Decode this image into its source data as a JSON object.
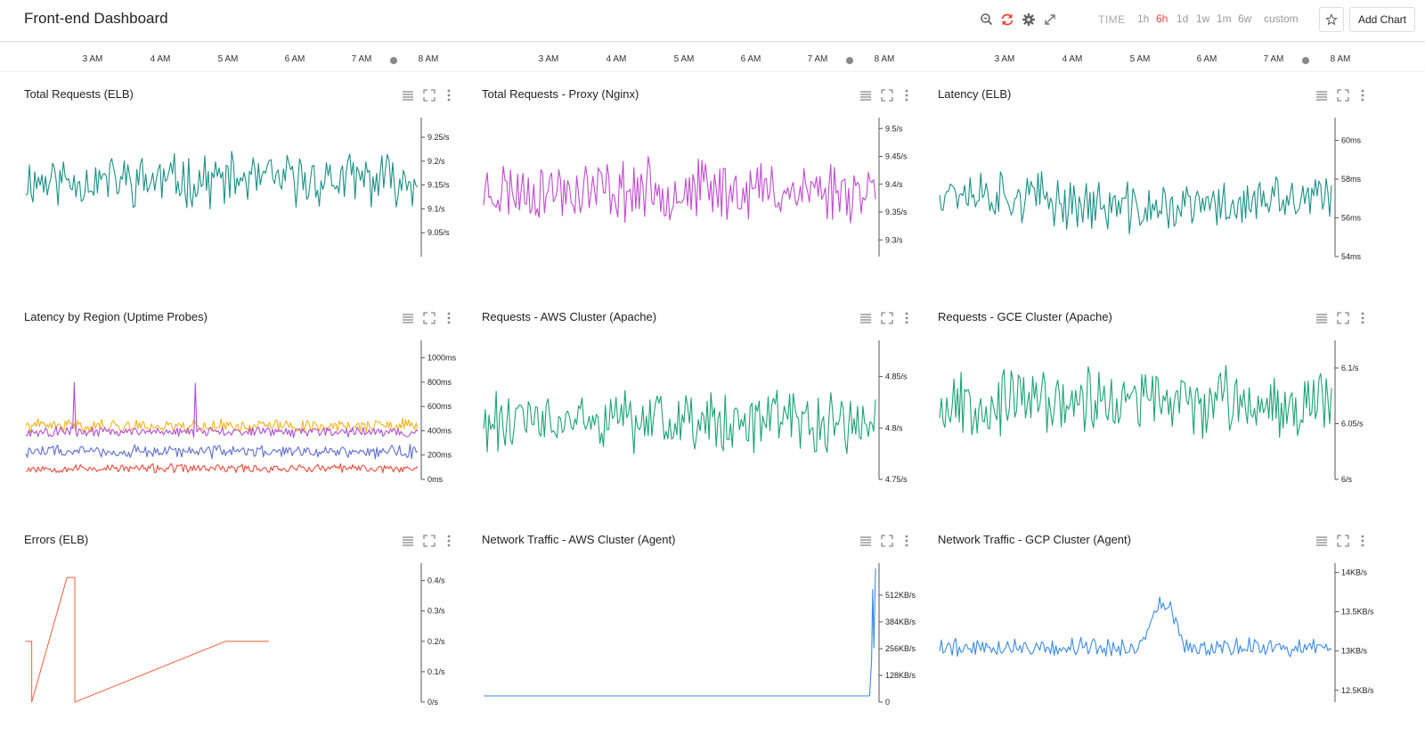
{
  "app": {
    "title": "Front-end Dashboard",
    "time_label": "TIME",
    "ranges": [
      "1h",
      "6h",
      "1d",
      "1w",
      "1m",
      "6w",
      "custom"
    ],
    "active_range": "6h",
    "add_chart_label": "Add Chart",
    "colors": {
      "accent": "#e5483a",
      "teal": "#1a8f85",
      "magenta": "#c14ad1",
      "green": "#1aa375",
      "blue": "#3b8be6",
      "orange": "#f56b4a"
    }
  },
  "timeline": {
    "labels": [
      "3 AM",
      "4 AM",
      "5 AM",
      "6 AM",
      "7 AM",
      "8 AM"
    ]
  },
  "panels": [
    {
      "title": "Total Requests (ELB)"
    },
    {
      "title": "Total Requests - Proxy (Nginx)"
    },
    {
      "title": "Latency (ELB)"
    },
    {
      "title": "Latency by Region (Uptime Probes)"
    },
    {
      "title": "Requests - AWS Cluster (Apache)"
    },
    {
      "title": "Requests - GCE Cluster (Apache)"
    },
    {
      "title": "Errors (ELB)"
    },
    {
      "title": "Network Traffic - AWS Cluster (Agent)"
    },
    {
      "title": "Network Traffic - GCP Cluster (Agent)"
    }
  ],
  "chart_data": [
    {
      "type": "line",
      "title": "Total Requests (ELB)",
      "yticks": [
        "9.25/s",
        "9.2/s",
        "9.15/s",
        "9.1/s",
        "9.05/s"
      ],
      "ytick_values": [
        9.25,
        9.2,
        9.15,
        9.1,
        9.05
      ],
      "ylim": [
        9.0,
        9.28
      ],
      "series": [
        {
          "color": "#1a8f85",
          "mean": 9.16,
          "amp": 0.045,
          "points": 220,
          "seed": 11
        }
      ]
    },
    {
      "type": "line",
      "title": "Total Requests - Proxy (Nginx)",
      "yticks": [
        "9.5/s",
        "9.45/s",
        "9.4/s",
        "9.35/s",
        "9.3/s"
      ],
      "ytick_values": [
        9.5,
        9.45,
        9.4,
        9.35,
        9.3
      ],
      "ylim": [
        9.27,
        9.51
      ],
      "series": [
        {
          "color": "#c14ad1",
          "mean": 9.39,
          "amp": 0.045,
          "points": 220,
          "seed": 23
        }
      ]
    },
    {
      "type": "line",
      "title": "Latency (ELB)",
      "yticks": [
        "60ms",
        "58ms",
        "56ms",
        "54ms"
      ],
      "ytick_values": [
        60,
        58,
        56,
        54
      ],
      "ylim": [
        54,
        60.9
      ],
      "series": [
        {
          "color": "#1a8f85",
          "mean": 57.0,
          "amp": 1.1,
          "points": 220,
          "seed": 37,
          "trend": [
            57.6,
            56.4,
            57.0
          ]
        }
      ]
    },
    {
      "type": "line",
      "title": "Latency by Region (Uptime Probes)",
      "yticks": [
        "1000ms",
        "800ms",
        "600ms",
        "400ms",
        "200ms",
        "0ms"
      ],
      "ytick_values": [
        1000,
        800,
        600,
        400,
        200,
        0
      ],
      "ylim": [
        0,
        1100
      ],
      "series": [
        {
          "color": "#f5b21c",
          "mean": 440,
          "amp": 45,
          "points": 260,
          "seed": 41
        },
        {
          "color": "#b04fd6",
          "mean": 390,
          "amp": 35,
          "points": 260,
          "seed": 43,
          "spikes": 6
        },
        {
          "color": "#5f6fd0",
          "mean": 230,
          "amp": 45,
          "points": 260,
          "seed": 47
        },
        {
          "color": "#e94b3c",
          "mean": 90,
          "amp": 30,
          "points": 260,
          "seed": 53
        }
      ]
    },
    {
      "type": "line",
      "title": "Requests - AWS Cluster (Apache)",
      "yticks": [
        "4.85/s",
        "4.8/s",
        "4.75/s"
      ],
      "ytick_values": [
        4.85,
        4.8,
        4.75
      ],
      "ylim": [
        4.75,
        4.88
      ],
      "series": [
        {
          "color": "#1aa375",
          "mean": 4.805,
          "amp": 0.025,
          "points": 220,
          "seed": 61
        }
      ]
    },
    {
      "type": "line",
      "title": "Requests - GCE Cluster (Apache)",
      "yticks": [
        "6.1/s",
        "6.05/s",
        "6/s"
      ],
      "ytick_values": [
        6.1,
        6.05,
        6.0
      ],
      "ylim": [
        6.0,
        6.12
      ],
      "series": [
        {
          "color": "#1aa375",
          "mean": 6.07,
          "amp": 0.025,
          "points": 220,
          "seed": 67
        }
      ]
    },
    {
      "type": "line",
      "title": "Errors (ELB)",
      "yticks": [
        "0.4/s",
        "0.3/s",
        "0.2/s",
        "0.1/s",
        "0/s"
      ],
      "ytick_values": [
        0.4,
        0.3,
        0.2,
        0.1,
        0.0
      ],
      "ylim": [
        0,
        0.44
      ],
      "series": [
        {
          "color": "#f56b4a",
          "points_xy": [
            [
              0.0,
              0.2
            ],
            [
              0.015,
              0.2
            ],
            [
              0.015,
              0.0
            ],
            [
              0.105,
              0.41
            ],
            [
              0.125,
              0.41
            ],
            [
              0.125,
              0.0
            ],
            [
              0.51,
              0.2
            ],
            [
              0.6,
              0.2
            ],
            [
              0.62,
              0.2
            ]
          ]
        }
      ]
    },
    {
      "type": "line",
      "title": "Network Traffic - AWS Cluster (Agent)",
      "yticks": [
        "512KB/s",
        "384KB/s",
        "256KB/s",
        "128KB/s",
        "0"
      ],
      "ytick_values": [
        512,
        384,
        256,
        128,
        0
      ],
      "ylim": [
        0,
        640
      ],
      "series": [
        {
          "color": "#3b8be6",
          "points_xy": [
            [
              0.0,
              30
            ],
            [
              0.985,
              30
            ],
            [
              0.99,
              200
            ],
            [
              0.993,
              540
            ],
            [
              0.996,
              260
            ],
            [
              1.0,
              640
            ]
          ]
        }
      ]
    },
    {
      "type": "line",
      "title": "Network Traffic - GCP Cluster (Agent)",
      "yticks": [
        "14KB/s",
        "13.5KB/s",
        "13KB/s",
        "12.5KB/s"
      ],
      "ytick_values": [
        14,
        13.5,
        13,
        12.5
      ],
      "ylim": [
        12.35,
        14.05
      ],
      "series": [
        {
          "color": "#3b8be6",
          "mean": 13.05,
          "amp": 0.1,
          "points": 220,
          "seed": 79,
          "bump": [
            0.52,
            0.62,
            0.55
          ]
        }
      ]
    }
  ]
}
